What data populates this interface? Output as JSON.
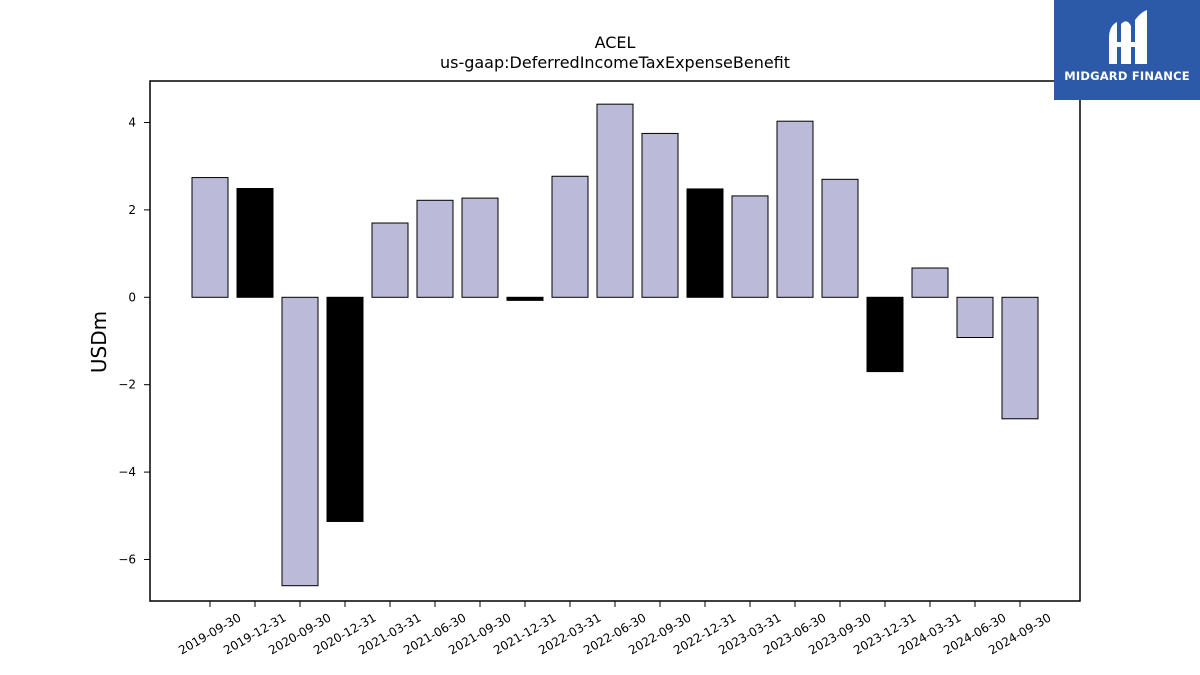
{
  "chart_data": {
    "type": "bar",
    "title": "ACEL",
    "subtitle": "us-gaap:DeferredIncomeTaxExpenseBenefit",
    "xlabel": "",
    "ylabel": "USDm",
    "ylim": [
      -6.95,
      4.95
    ],
    "yticks": [
      4,
      2,
      0,
      -2,
      -4,
      -6
    ],
    "grid": false,
    "categories": [
      "2019-09-30",
      "2019-12-31",
      "2020-09-30",
      "2020-12-31",
      "2021-03-31",
      "2021-06-30",
      "2021-09-30",
      "2021-12-31",
      "2022-03-31",
      "2022-06-30",
      "2022-09-30",
      "2022-12-31",
      "2023-03-31",
      "2023-06-30",
      "2023-09-30",
      "2023-12-31",
      "2024-03-31",
      "2024-06-30",
      "2024-09-30"
    ],
    "values": [
      2.74,
      2.49,
      -6.6,
      -5.13,
      1.7,
      2.22,
      2.27,
      -0.07,
      2.77,
      4.42,
      3.75,
      2.48,
      2.32,
      4.03,
      2.7,
      -1.7,
      0.67,
      -0.92,
      -2.78
    ],
    "bar_colors": [
      "#bcbad9",
      "#000000",
      "#bcbad9",
      "#000000",
      "#bcbad9",
      "#bcbad9",
      "#bcbad9",
      "#000000",
      "#bcbad9",
      "#bcbad9",
      "#bcbad9",
      "#000000",
      "#bcbad9",
      "#bcbad9",
      "#bcbad9",
      "#000000",
      "#bcbad9",
      "#bcbad9",
      "#bcbad9"
    ]
  },
  "logo": {
    "text": "MIDGARD FINANCE",
    "background": "#2c5aa9"
  }
}
